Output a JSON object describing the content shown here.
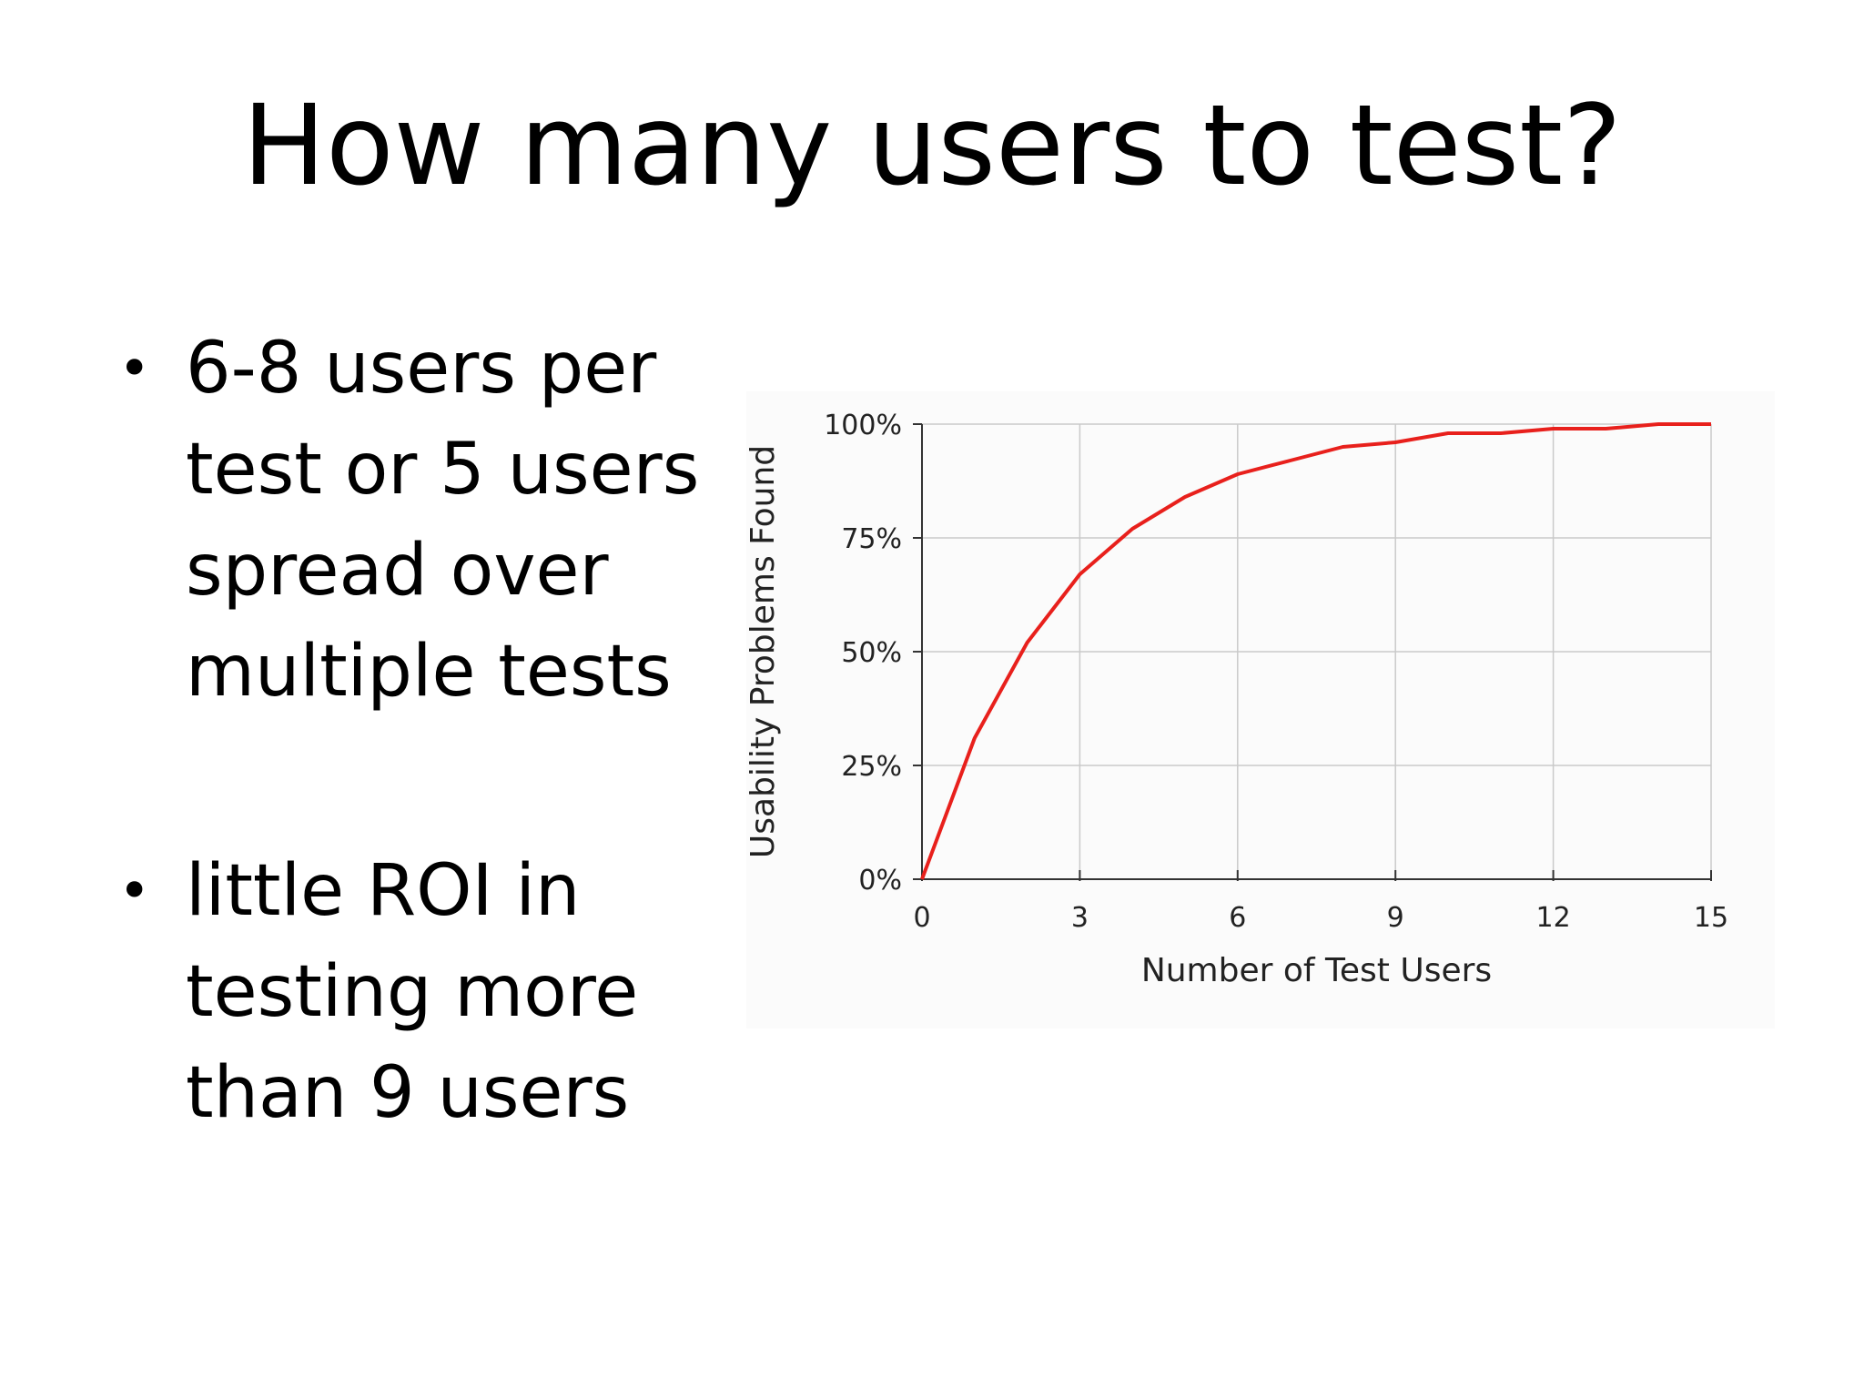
{
  "slide": {
    "title": "How many users to test?",
    "bullets": [
      "6-8 users per test or 5 users spread over multiple tests",
      "little ROI in testing more than 9 users"
    ]
  },
  "chart_data": {
    "type": "line",
    "xlabel": "Number of Test Users",
    "ylabel": "Usability Problems Found",
    "x_ticks": [
      "0",
      "3",
      "6",
      "9",
      "12",
      "15"
    ],
    "y_ticks": [
      "0%",
      "25%",
      "50%",
      "75%",
      "100%"
    ],
    "xlim": [
      0,
      15
    ],
    "ylim": [
      0,
      100
    ],
    "grid": true,
    "line_color": "#e8201c",
    "series": [
      {
        "x": [
          0,
          1,
          2,
          3,
          4,
          5,
          6,
          7,
          8,
          9,
          10,
          11,
          12,
          13,
          14,
          15
        ],
        "values": [
          0,
          31,
          52,
          67,
          77,
          84,
          89,
          92,
          95,
          96,
          98,
          98,
          99,
          99,
          100,
          100
        ]
      }
    ]
  }
}
